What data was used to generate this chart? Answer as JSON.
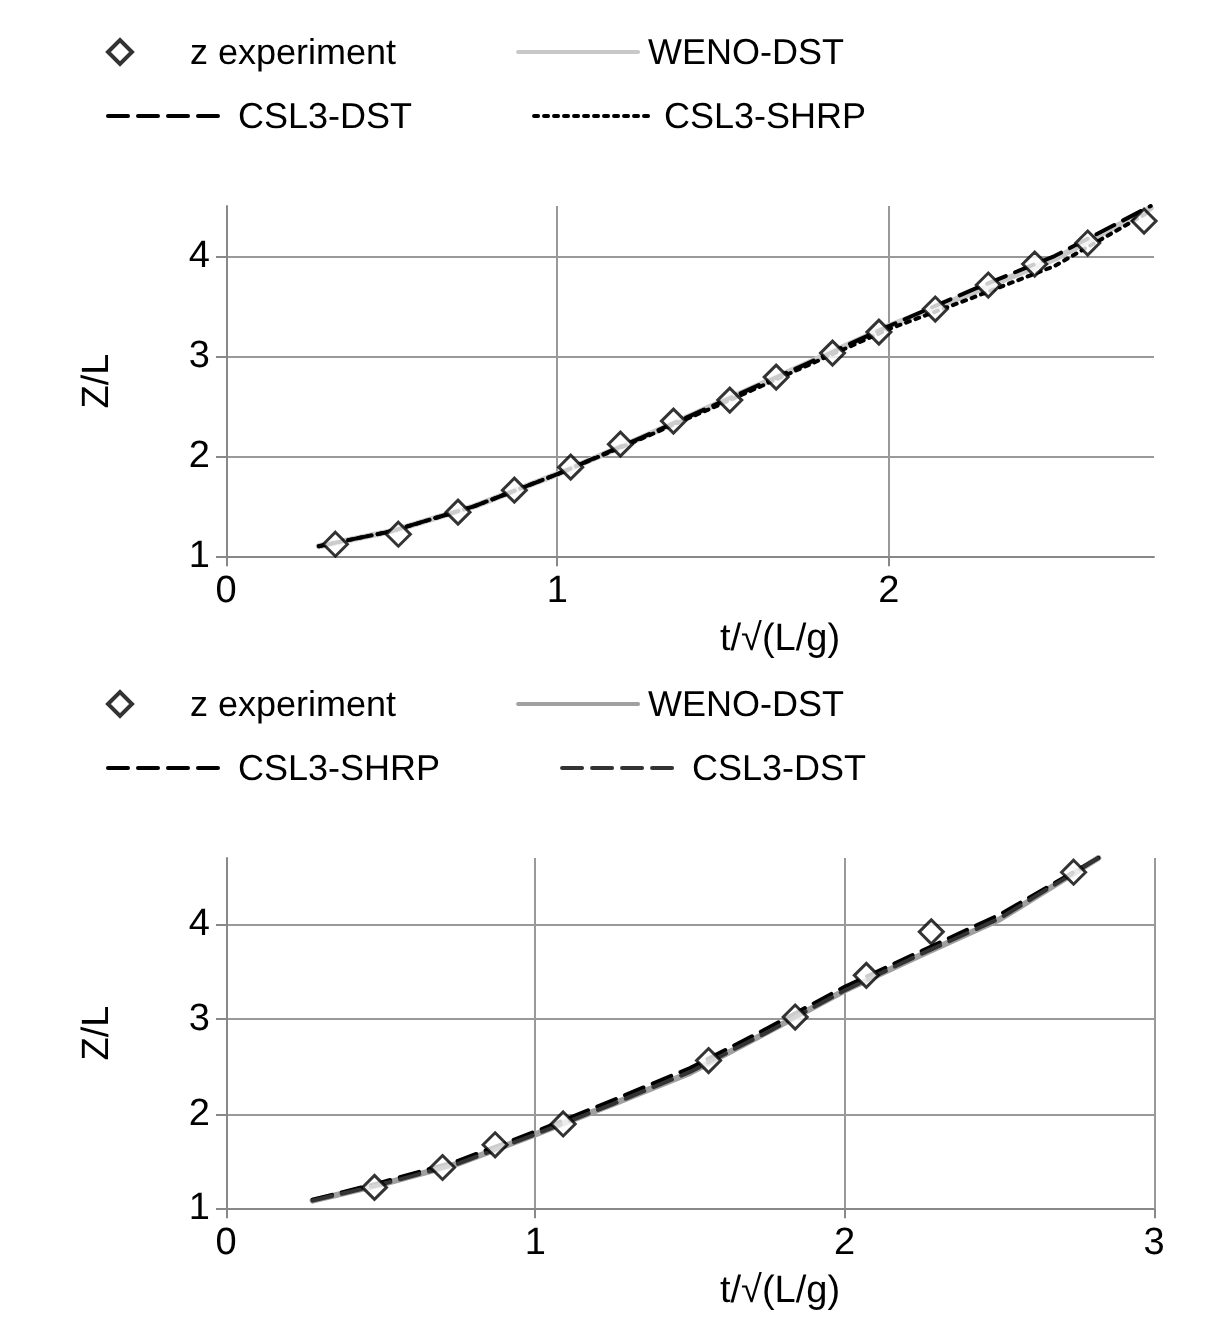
{
  "chart_data": [
    {
      "type": "line",
      "xlabel": "t/√(L/g)",
      "ylabel": "Z/L",
      "xlim": [
        0,
        2.8
      ],
      "xticks": [
        0,
        1,
        2
      ],
      "ylim": [
        1,
        4.5
      ],
      "yticks": [
        1,
        2,
        3,
        4
      ],
      "grid": true,
      "legend": "top",
      "series": [
        {
          "name": "z experiment",
          "type": "scatter",
          "marker": "diamond",
          "color": "#000000",
          "x": [
            0.33,
            0.52,
            0.7,
            0.87,
            1.04,
            1.19,
            1.35,
            1.52,
            1.66,
            1.83,
            1.97,
            2.14,
            2.3,
            2.44,
            2.6,
            2.77
          ],
          "values": [
            1.12,
            1.22,
            1.44,
            1.66,
            1.89,
            2.12,
            2.35,
            2.56,
            2.79,
            3.03,
            3.24,
            3.47,
            3.71,
            3.92,
            4.13,
            4.35
          ]
        },
        {
          "name": "WENO-DST",
          "line_style": "solid",
          "color": "#c8c8c8",
          "x": [
            0.28,
            0.5,
            0.75,
            1,
            1.25,
            1.5,
            1.75,
            2,
            2.25,
            2.5,
            2.79
          ],
          "values": [
            1.1,
            1.25,
            1.5,
            1.82,
            2.18,
            2.55,
            2.92,
            3.3,
            3.63,
            3.97,
            4.48
          ]
        },
        {
          "name": "CSL3-DST",
          "line_style": "dashed",
          "color": "#000000",
          "x": [
            0.28,
            0.5,
            0.75,
            1,
            1.25,
            1.5,
            1.75,
            2,
            2.25,
            2.5,
            2.79
          ],
          "values": [
            1.1,
            1.25,
            1.5,
            1.82,
            2.18,
            2.55,
            2.92,
            3.3,
            3.66,
            4.0,
            4.5
          ]
        },
        {
          "name": "CSL3-SHRP",
          "line_style": "dotted",
          "color": "#000000",
          "x": [
            0.28,
            0.5,
            0.75,
            1,
            1.25,
            1.5,
            1.75,
            2,
            2.25,
            2.5,
            2.79
          ],
          "values": [
            1.1,
            1.25,
            1.5,
            1.82,
            2.17,
            2.53,
            2.9,
            3.27,
            3.58,
            3.9,
            4.45
          ]
        }
      ]
    },
    {
      "type": "line",
      "xlabel": "t/√(L/g)",
      "ylabel": "Z/L",
      "xlim": [
        0,
        3
      ],
      "xticks": [
        0,
        1,
        2,
        3
      ],
      "ylim": [
        1,
        4.7
      ],
      "yticks": [
        1,
        2,
        3,
        4
      ],
      "grid": true,
      "legend": "top",
      "series": [
        {
          "name": "z experiment",
          "type": "scatter",
          "marker": "diamond",
          "color": "#000000",
          "x": [
            0.48,
            0.7,
            0.87,
            1.09,
            1.56,
            1.84,
            2.07,
            2.28,
            2.74
          ],
          "values": [
            1.22,
            1.43,
            1.67,
            1.89,
            2.56,
            3.02,
            3.46,
            3.92,
            4.55
          ]
        },
        {
          "name": "WENO-DST",
          "line_style": "solid",
          "color": "#a0a0a0",
          "x": [
            0.28,
            0.5,
            0.75,
            1,
            1.25,
            1.5,
            1.75,
            2,
            2.25,
            2.5,
            2.82
          ],
          "values": [
            1.08,
            1.25,
            1.47,
            1.78,
            2.1,
            2.43,
            2.86,
            3.3,
            3.68,
            4.05,
            4.7
          ]
        },
        {
          "name": "CSL3-SHRP",
          "line_style": "dashed",
          "color": "#000000",
          "x": [
            0.28,
            0.5,
            0.75,
            1,
            1.25,
            1.5,
            1.75,
            2,
            2.25,
            2.5,
            2.82
          ],
          "values": [
            1.09,
            1.27,
            1.5,
            1.81,
            2.14,
            2.48,
            2.9,
            3.34,
            3.72,
            4.1,
            4.7
          ]
        },
        {
          "name": "CSL3-DST",
          "line_style": "dashed",
          "color": "#333333",
          "x": [
            0.28,
            0.5,
            0.75,
            1,
            1.25,
            1.5,
            1.75,
            2,
            2.25,
            2.5,
            2.82
          ],
          "values": [
            1.08,
            1.25,
            1.47,
            1.78,
            2.1,
            2.44,
            2.86,
            3.3,
            3.69,
            4.06,
            4.7
          ]
        }
      ]
    }
  ]
}
